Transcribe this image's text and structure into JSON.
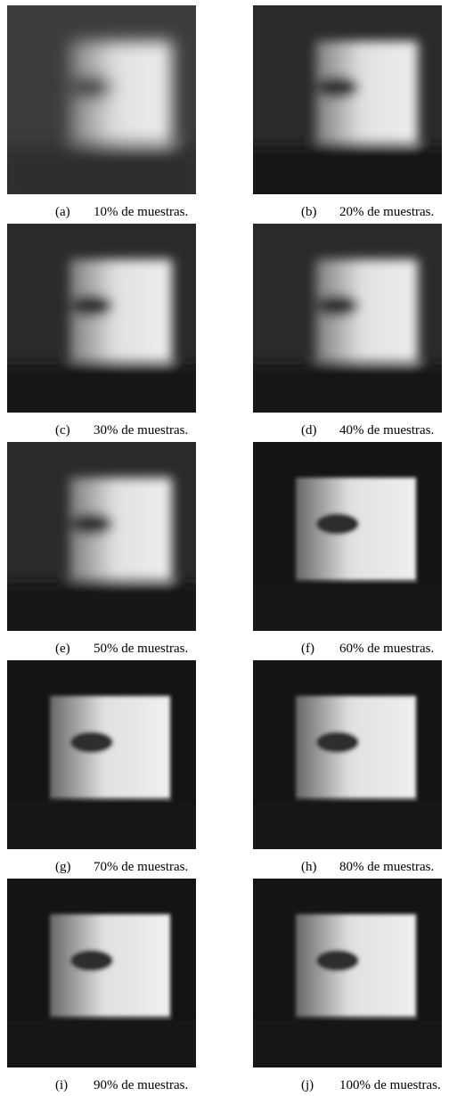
{
  "figure": {
    "panels": [
      {
        "label": "(a)",
        "caption": "10% de muestras."
      },
      {
        "label": "(b)",
        "caption": "20% de muestras."
      },
      {
        "label": "(c)",
        "caption": "30% de muestras."
      },
      {
        "label": "(d)",
        "caption": "40% de muestras."
      },
      {
        "label": "(e)",
        "caption": "50% de muestras."
      },
      {
        "label": "(f)",
        "caption": "60% de muestras."
      },
      {
        "label": "(g)",
        "caption": "70% de muestras."
      },
      {
        "label": "(h)",
        "caption": "80% de muestras."
      },
      {
        "label": "(i)",
        "caption": "90% de muestras."
      },
      {
        "label": "(j)",
        "caption": "100% de muestras."
      }
    ]
  }
}
